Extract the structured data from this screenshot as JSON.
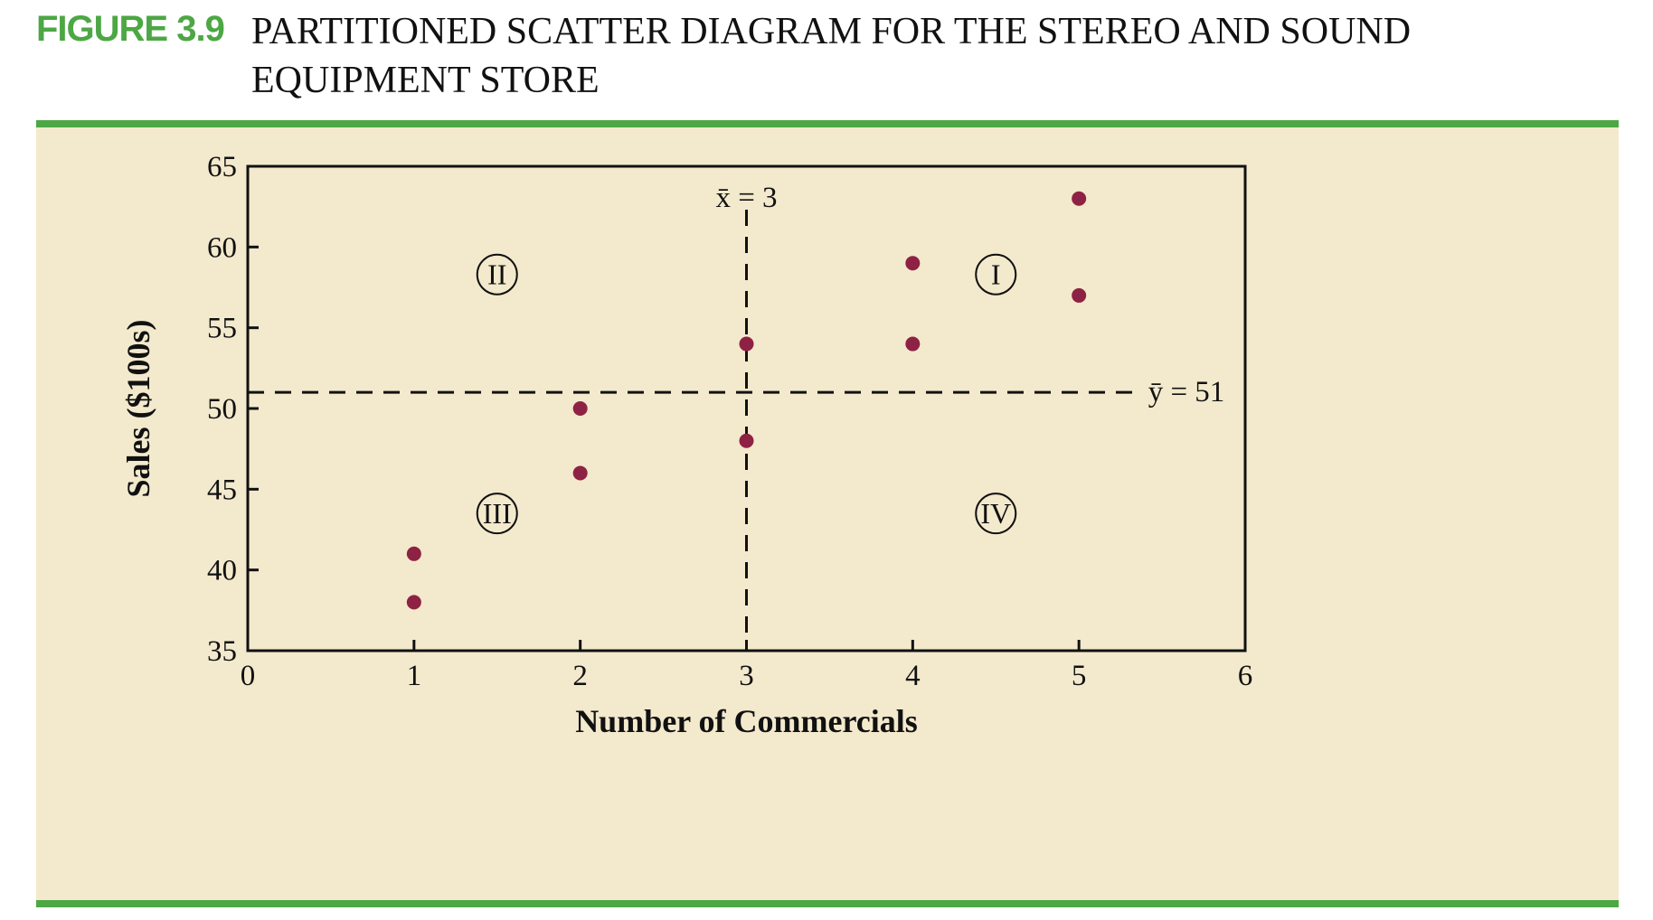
{
  "figure": {
    "label": "FIGURE 3.9",
    "title": "PARTITIONED SCATTER DIAGRAM FOR THE STEREO AND SOUND EQUIPMENT STORE"
  },
  "colors": {
    "accent": "#4ca744",
    "panel": "#f3e9cc",
    "points": "#8e2244"
  },
  "chart_data": {
    "type": "scatter",
    "xlabel": "Number of Commercials",
    "ylabel": "Sales ($100s)",
    "xlim": [
      0,
      6
    ],
    "ylim": [
      35,
      65
    ],
    "x_ticks": [
      "0",
      "1",
      "2",
      "3",
      "4",
      "5",
      "6"
    ],
    "y_ticks": [
      "35",
      "40",
      "45",
      "50",
      "55",
      "60",
      "65"
    ],
    "points": [
      {
        "x": 1,
        "y": 41
      },
      {
        "x": 1,
        "y": 38
      },
      {
        "x": 2,
        "y": 50
      },
      {
        "x": 2,
        "y": 46
      },
      {
        "x": 3,
        "y": 54
      },
      {
        "x": 3,
        "y": 48
      },
      {
        "x": 4,
        "y": 59
      },
      {
        "x": 4,
        "y": 54
      },
      {
        "x": 5,
        "y": 63
      },
      {
        "x": 5,
        "y": 57
      }
    ],
    "x_mean": 3,
    "y_mean": 51,
    "x_mean_label": "x̄ = 3",
    "y_mean_label": "ȳ = 51",
    "grid": false,
    "quadrants": [
      {
        "label": "I",
        "x": 4.5,
        "y": 58.3
      },
      {
        "label": "II",
        "x": 1.5,
        "y": 58.3
      },
      {
        "label": "III",
        "x": 1.5,
        "y": 43.5
      },
      {
        "label": "IV",
        "x": 4.5,
        "y": 43.5
      }
    ]
  }
}
